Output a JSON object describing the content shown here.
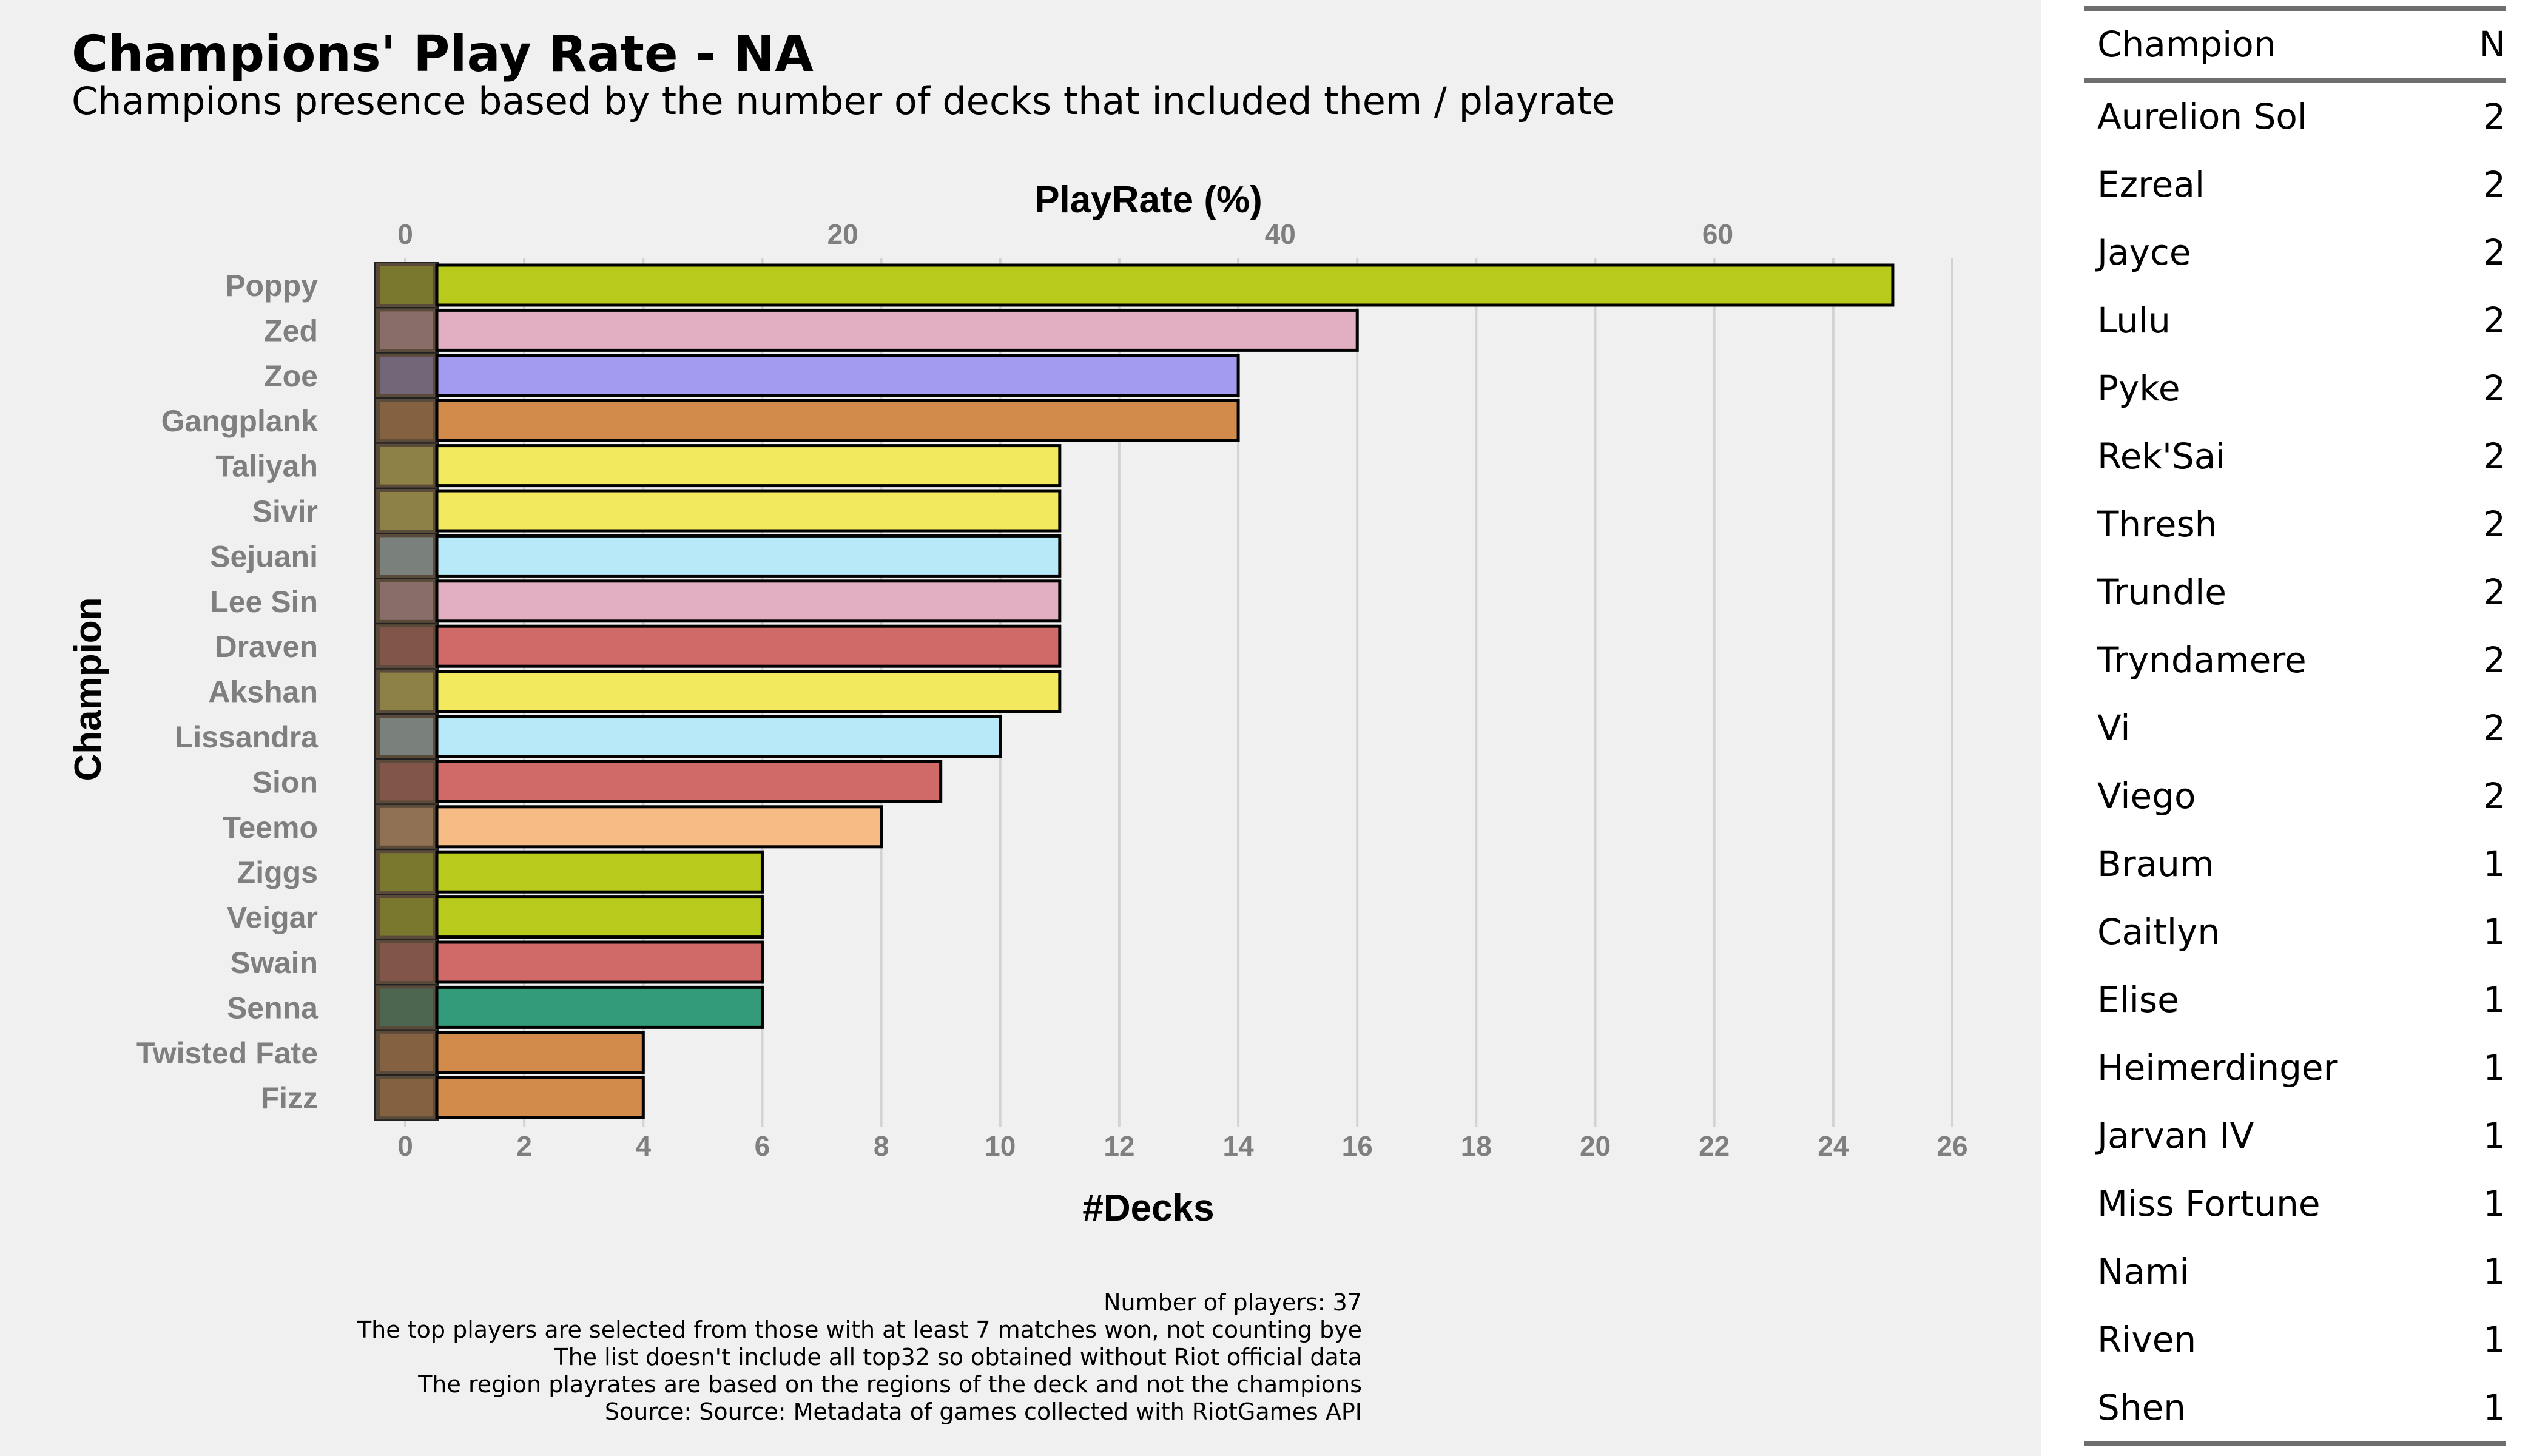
{
  "chart": {
    "title": "Champions' Play Rate - NA",
    "subtitle": "Champions presence based by the number of decks that included them / playrate",
    "caption_lines": [
      "Number of players: 37",
      "The top players are selected from those with at least 7 matches won, not counting bye",
      "The list doesn't include all top32 so obtained without Riot official data",
      "The region playrates are based on the regions of the deck and not the champions",
      "Source: Source: Metadata of games collected with RiotGames API"
    ]
  },
  "chart_data": {
    "type": "bar",
    "orientation": "horizontal",
    "xlabel": "#Decks",
    "ylabel": "Champion",
    "secondary_xlabel": "PlayRate (%)",
    "xlim": [
      0,
      26
    ],
    "x_ticks": [
      0,
      2,
      4,
      6,
      8,
      10,
      12,
      14,
      16,
      18,
      20,
      22,
      24,
      26
    ],
    "secondary_x_ticks": [
      0,
      20,
      40,
      60
    ],
    "grid": true,
    "categories": [
      "Poppy",
      "Zed",
      "Zoe",
      "Gangplank",
      "Taliyah",
      "Sivir",
      "Sejuani",
      "Lee Sin",
      "Draven",
      "Akshan",
      "Lissandra",
      "Sion",
      "Teemo",
      "Ziggs",
      "Veigar",
      "Swain",
      "Senna",
      "Twisted Fate",
      "Fizz"
    ],
    "values": [
      25,
      16,
      14,
      14,
      11,
      11,
      11,
      11,
      11,
      11,
      10,
      9,
      8,
      6,
      6,
      6,
      6,
      4,
      4
    ],
    "bar_colors": [
      "#b8cb1c",
      "#e2aec1",
      "#a29bf0",
      "#d38b4c",
      "#f2e95e",
      "#f2e95e",
      "#b8e9f8",
      "#e2aec1",
      "#cf6a68",
      "#f2e95e",
      "#b8e9f8",
      "#cf6a68",
      "#f7bb85",
      "#b8cb1c",
      "#b8cb1c",
      "#cf6a68",
      "#339a7a",
      "#d38b4c",
      "#d38b4c"
    ]
  },
  "table": {
    "headers": [
      "Champion",
      "N"
    ],
    "rows": [
      [
        "Aurelion Sol",
        "2"
      ],
      [
        "Ezreal",
        "2"
      ],
      [
        "Jayce",
        "2"
      ],
      [
        "Lulu",
        "2"
      ],
      [
        "Pyke",
        "2"
      ],
      [
        "Rek'Sai",
        "2"
      ],
      [
        "Thresh",
        "2"
      ],
      [
        "Trundle",
        "2"
      ],
      [
        "Tryndamere",
        "2"
      ],
      [
        "Vi",
        "2"
      ],
      [
        "Viego",
        "2"
      ],
      [
        "Braum",
        "1"
      ],
      [
        "Caitlyn",
        "1"
      ],
      [
        "Elise",
        "1"
      ],
      [
        "Heimerdinger",
        "1"
      ],
      [
        "Jarvan IV",
        "1"
      ],
      [
        "Miss Fortune",
        "1"
      ],
      [
        "Nami",
        "1"
      ],
      [
        "Riven",
        "1"
      ],
      [
        "Shen",
        "1"
      ]
    ]
  }
}
